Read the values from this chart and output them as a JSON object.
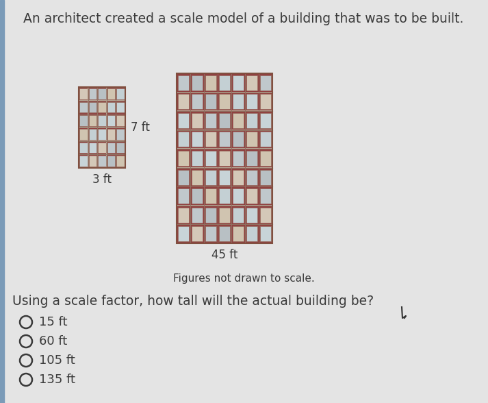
{
  "title": "An architect created a scale model of a building that was to be built.",
  "subtitle": "Figures not drawn to scale.",
  "question": "Using a scale factor, how tall will the actual building be?",
  "choices": [
    "15 ft",
    "60 ft",
    "105 ft",
    "135 ft"
  ],
  "small_building": {
    "label_width": "3 ft",
    "label_height": "7 ft",
    "rows": 6,
    "cols": 5
  },
  "large_building": {
    "label": "45 ft",
    "rows": 9,
    "cols": 7
  },
  "bg_color": "#dcdcdc",
  "bg_color2": "#e4e4e4",
  "building_wall": "#b8a898",
  "win_colors": [
    "#c8d4d8",
    "#d4c8b8",
    "#c0c8cc",
    "#b8c0c4",
    "#d0c4b0",
    "#c4d0d4"
  ],
  "win_border": "#8b3030",
  "floor_band": "#c8b8a8",
  "text_color": "#3a3a3a",
  "title_fontsize": 13.5,
  "question_fontsize": 13.5,
  "choice_fontsize": 13,
  "label_fontsize": 12,
  "subtitle_fontsize": 11
}
